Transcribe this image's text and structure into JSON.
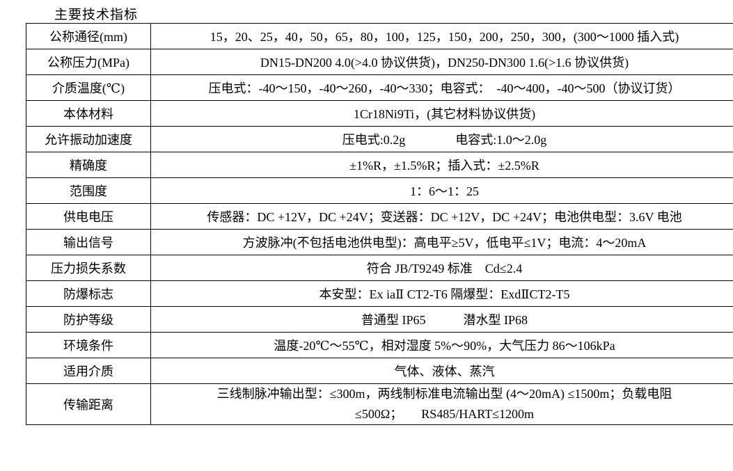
{
  "page": {
    "title": "主要技术指标"
  },
  "colors": {
    "text": "#000000",
    "border": "#000000",
    "background": "#ffffff"
  },
  "table": {
    "rows": [
      {
        "label": "公称通径(mm)",
        "value": "15，20、25，40，50，65，80，100，125，150，200，250，300，(300～1000 插入式)"
      },
      {
        "label": "公称压力(MPa)",
        "value": "DN15-DN200 4.0(>4.0 协议供货)，DN250-DN300 1.6(>1.6 协议供货)"
      },
      {
        "label": "介质温度(℃)",
        "value": "压电式：-40～150，-40～260，-40～330；电容式：　-40～400，-40～500（协议订货）"
      },
      {
        "label": "本体材料",
        "value": "1Cr18Ni9Ti，(其它材料协议供货)"
      },
      {
        "label": "允许振动加速度",
        "value": "压电式:0.2g　　　　电容式:1.0～2.0g"
      },
      {
        "label": "精确度",
        "value": "±1%R，±1.5%R；插入式：±2.5%R"
      },
      {
        "label": "范围度",
        "value": "1：6～1：25"
      },
      {
        "label": "供电电压",
        "value": "传感器：DC +12V，DC +24V；变送器：DC +12V，DC +24V；电池供电型：3.6V 电池"
      },
      {
        "label": "输出信号",
        "value": "方波脉冲(不包括电池供电型)：高电平≥5V，低电平≤1V；电流：4～20mA"
      },
      {
        "label": "压力损失系数",
        "value": "符合 JB/T9249 标准　Cd≤2.4"
      },
      {
        "label": "防爆标志",
        "value": "本安型：Ex iaⅡ CT2-T6 隔爆型：ExdⅡCT2-T5"
      },
      {
        "label": "防护等级",
        "value": "普通型 IP65　　　潜水型 IP68"
      },
      {
        "label": "环境条件",
        "value": "温度-20℃～55℃，相对湿度 5%～90%，大气压力 86～106kPa"
      },
      {
        "label": "适用介质",
        "value": "气体、液体、蒸汽"
      },
      {
        "label": "传输距离",
        "value": "三线制脉冲输出型：≤300m，两线制标准电流输出型 (4～20mA) ≤1500m；负载电阻\n≤500Ω；　　RS485/HART≤1200m"
      }
    ]
  }
}
